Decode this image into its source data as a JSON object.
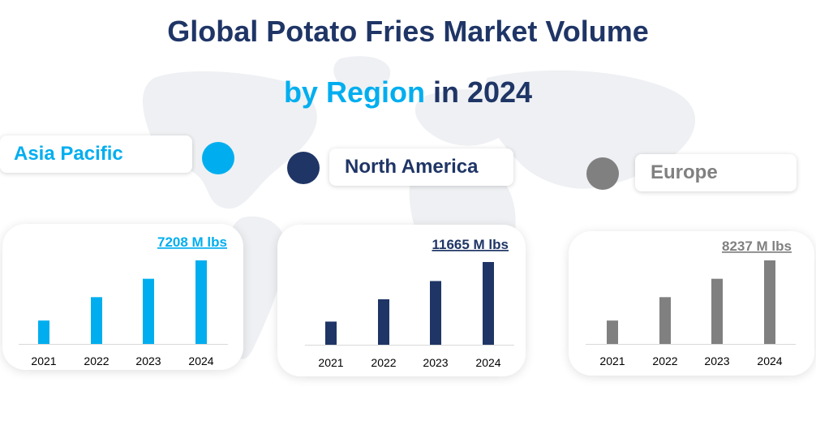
{
  "title": {
    "line1": "Global Potato Fries Market Volume",
    "line2_accent": "by Region",
    "line2_rest": " in 2024"
  },
  "colors": {
    "title": "#1f3566",
    "accent": "#00aeef",
    "asia_pacific": "#00aeef",
    "north_america": "#1f3566",
    "europe": "#808080",
    "map": "#eef0f3"
  },
  "chart_data": [
    {
      "type": "bar",
      "region": "Asia Pacific",
      "color": "#00aeef",
      "total_label": "7208 M lbs",
      "categories": [
        "2021",
        "2022",
        "2023",
        "2024"
      ],
      "values": [
        28,
        56,
        78,
        100
      ],
      "ylim": [
        0,
        100
      ],
      "grid": false
    },
    {
      "type": "bar",
      "region": "North America",
      "color": "#1f3566",
      "total_label": "11665 M lbs",
      "categories": [
        "2021",
        "2022",
        "2023",
        "2024"
      ],
      "values": [
        28,
        55,
        77,
        100
      ],
      "ylim": [
        0,
        100
      ],
      "grid": false
    },
    {
      "type": "bar",
      "region": "Europe",
      "color": "#808080",
      "total_label": "8237 M lbs",
      "categories": [
        "2021",
        "2022",
        "2023",
        "2024"
      ],
      "values": [
        28,
        56,
        78,
        100
      ],
      "ylim": [
        0,
        100
      ],
      "grid": false
    }
  ]
}
